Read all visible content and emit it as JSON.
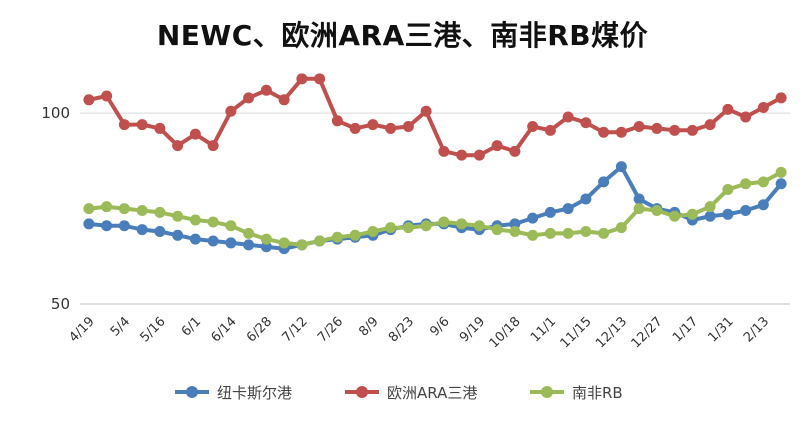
{
  "chart_data": {
    "type": "line",
    "title": "NEWC、欧洲ARA三港、南非RB煤价",
    "xlabel": "",
    "ylabel": "",
    "ylim": [
      50,
      110
    ],
    "y_ticks": [
      50,
      100
    ],
    "grid": "horizontal",
    "legend_position": "bottom",
    "categories": [
      "4/19",
      "",
      "5/4",
      "",
      "5/16",
      "",
      "6/1",
      "",
      "6/14",
      "",
      "6/28",
      "",
      "7/12",
      "",
      "7/26",
      "",
      "8/9",
      "",
      "8/23",
      "",
      "9/6",
      "",
      "9/19",
      "",
      "10/18",
      "",
      "11/1",
      "",
      "11/15",
      "",
      "12/13",
      "",
      "12/27",
      "",
      "1/17",
      "",
      "1/31",
      "",
      "2/13",
      ""
    ],
    "series": [
      {
        "name": "纽卡斯尔港",
        "color": "#4a7ebb",
        "values": [
          71,
          70.5,
          70.5,
          69.5,
          69,
          68,
          67,
          66.5,
          66,
          65.5,
          65,
          64.5,
          65.5,
          66.5,
          67,
          67.5,
          68,
          69.5,
          70.5,
          71,
          71,
          70,
          69.5,
          70.5,
          71,
          72.5,
          74,
          75,
          77.5,
          82,
          86,
          77.5,
          75,
          74,
          72,
          73,
          73.5,
          74.5,
          76,
          81.5
        ]
      },
      {
        "name": "欧洲ARA三港",
        "color": "#c0504d",
        "values": [
          103.5,
          104.5,
          97,
          97,
          96,
          91.5,
          94.5,
          91.5,
          100.5,
          104,
          106,
          103.5,
          109,
          109,
          98,
          96,
          97,
          96,
          96.5,
          100.5,
          90,
          89,
          89,
          91.5,
          90,
          96.5,
          95.5,
          99,
          97.5,
          95,
          95,
          96.5,
          96,
          95.5,
          95.5,
          97,
          101,
          99,
          101.5,
          104
        ]
      },
      {
        "name": "南非RB",
        "color": "#9bbb59",
        "values": [
          75,
          75.5,
          75,
          74.5,
          74,
          73,
          72,
          71.5,
          70.5,
          68.5,
          67,
          66,
          65.5,
          66.5,
          67.5,
          68,
          69,
          70,
          70,
          70.5,
          71.5,
          71,
          70.5,
          69.5,
          69,
          68,
          68.5,
          68.5,
          69,
          68.5,
          70,
          75,
          74.5,
          73,
          73.5,
          75.5,
          80,
          81.5,
          82,
          84.5
        ]
      }
    ]
  }
}
